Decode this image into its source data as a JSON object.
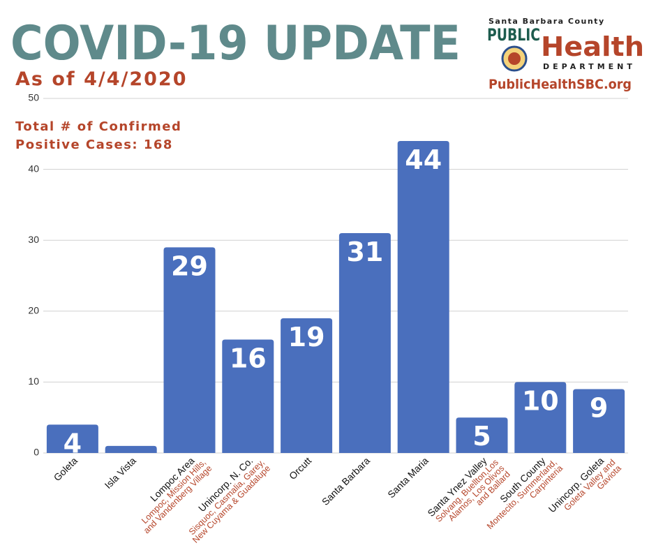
{
  "header": {
    "title": "COVID-19 UPDATE",
    "subtitle": "As of 4/4/2020",
    "logo": {
      "county": "Santa Barbara County",
      "public": "PUBLIC",
      "health": "Health",
      "department": "DEPARTMENT",
      "website": "PublicHealthSBC.org"
    }
  },
  "chart_data": {
    "type": "bar",
    "annotation": [
      "Total # of Confirmed",
      "Positive Cases: 168"
    ],
    "categories": [
      "Goleta",
      "Isla Vista",
      "Lompoc Area",
      "Unincorp. N. Co.",
      "Orcutt",
      "Santa Barbara",
      "Santa Maria",
      "Santa Ynez Valley",
      "South County",
      "Unincorp. Goleta"
    ],
    "category_notes": [
      null,
      null,
      [
        "Lompoc, Mission Hills,",
        "and Vandenberg Village"
      ],
      [
        "Sisquoc, Casmalia, Garey,",
        "New Cuyama & Guadalupe"
      ],
      null,
      null,
      null,
      [
        "Solvang, Buellton,Los",
        "Alamos, Los Olivos",
        "and Ballard"
      ],
      [
        "Montecito, Summerland,",
        "Carpinteria"
      ],
      [
        "Goleta Valley and",
        "Gaviota"
      ]
    ],
    "values": [
      4,
      1,
      29,
      16,
      19,
      31,
      44,
      5,
      10,
      9
    ],
    "color": "#4a6fbd",
    "ylim": [
      0,
      50
    ],
    "yticks": [
      0,
      10,
      20,
      30,
      40,
      50
    ],
    "grid": true
  }
}
